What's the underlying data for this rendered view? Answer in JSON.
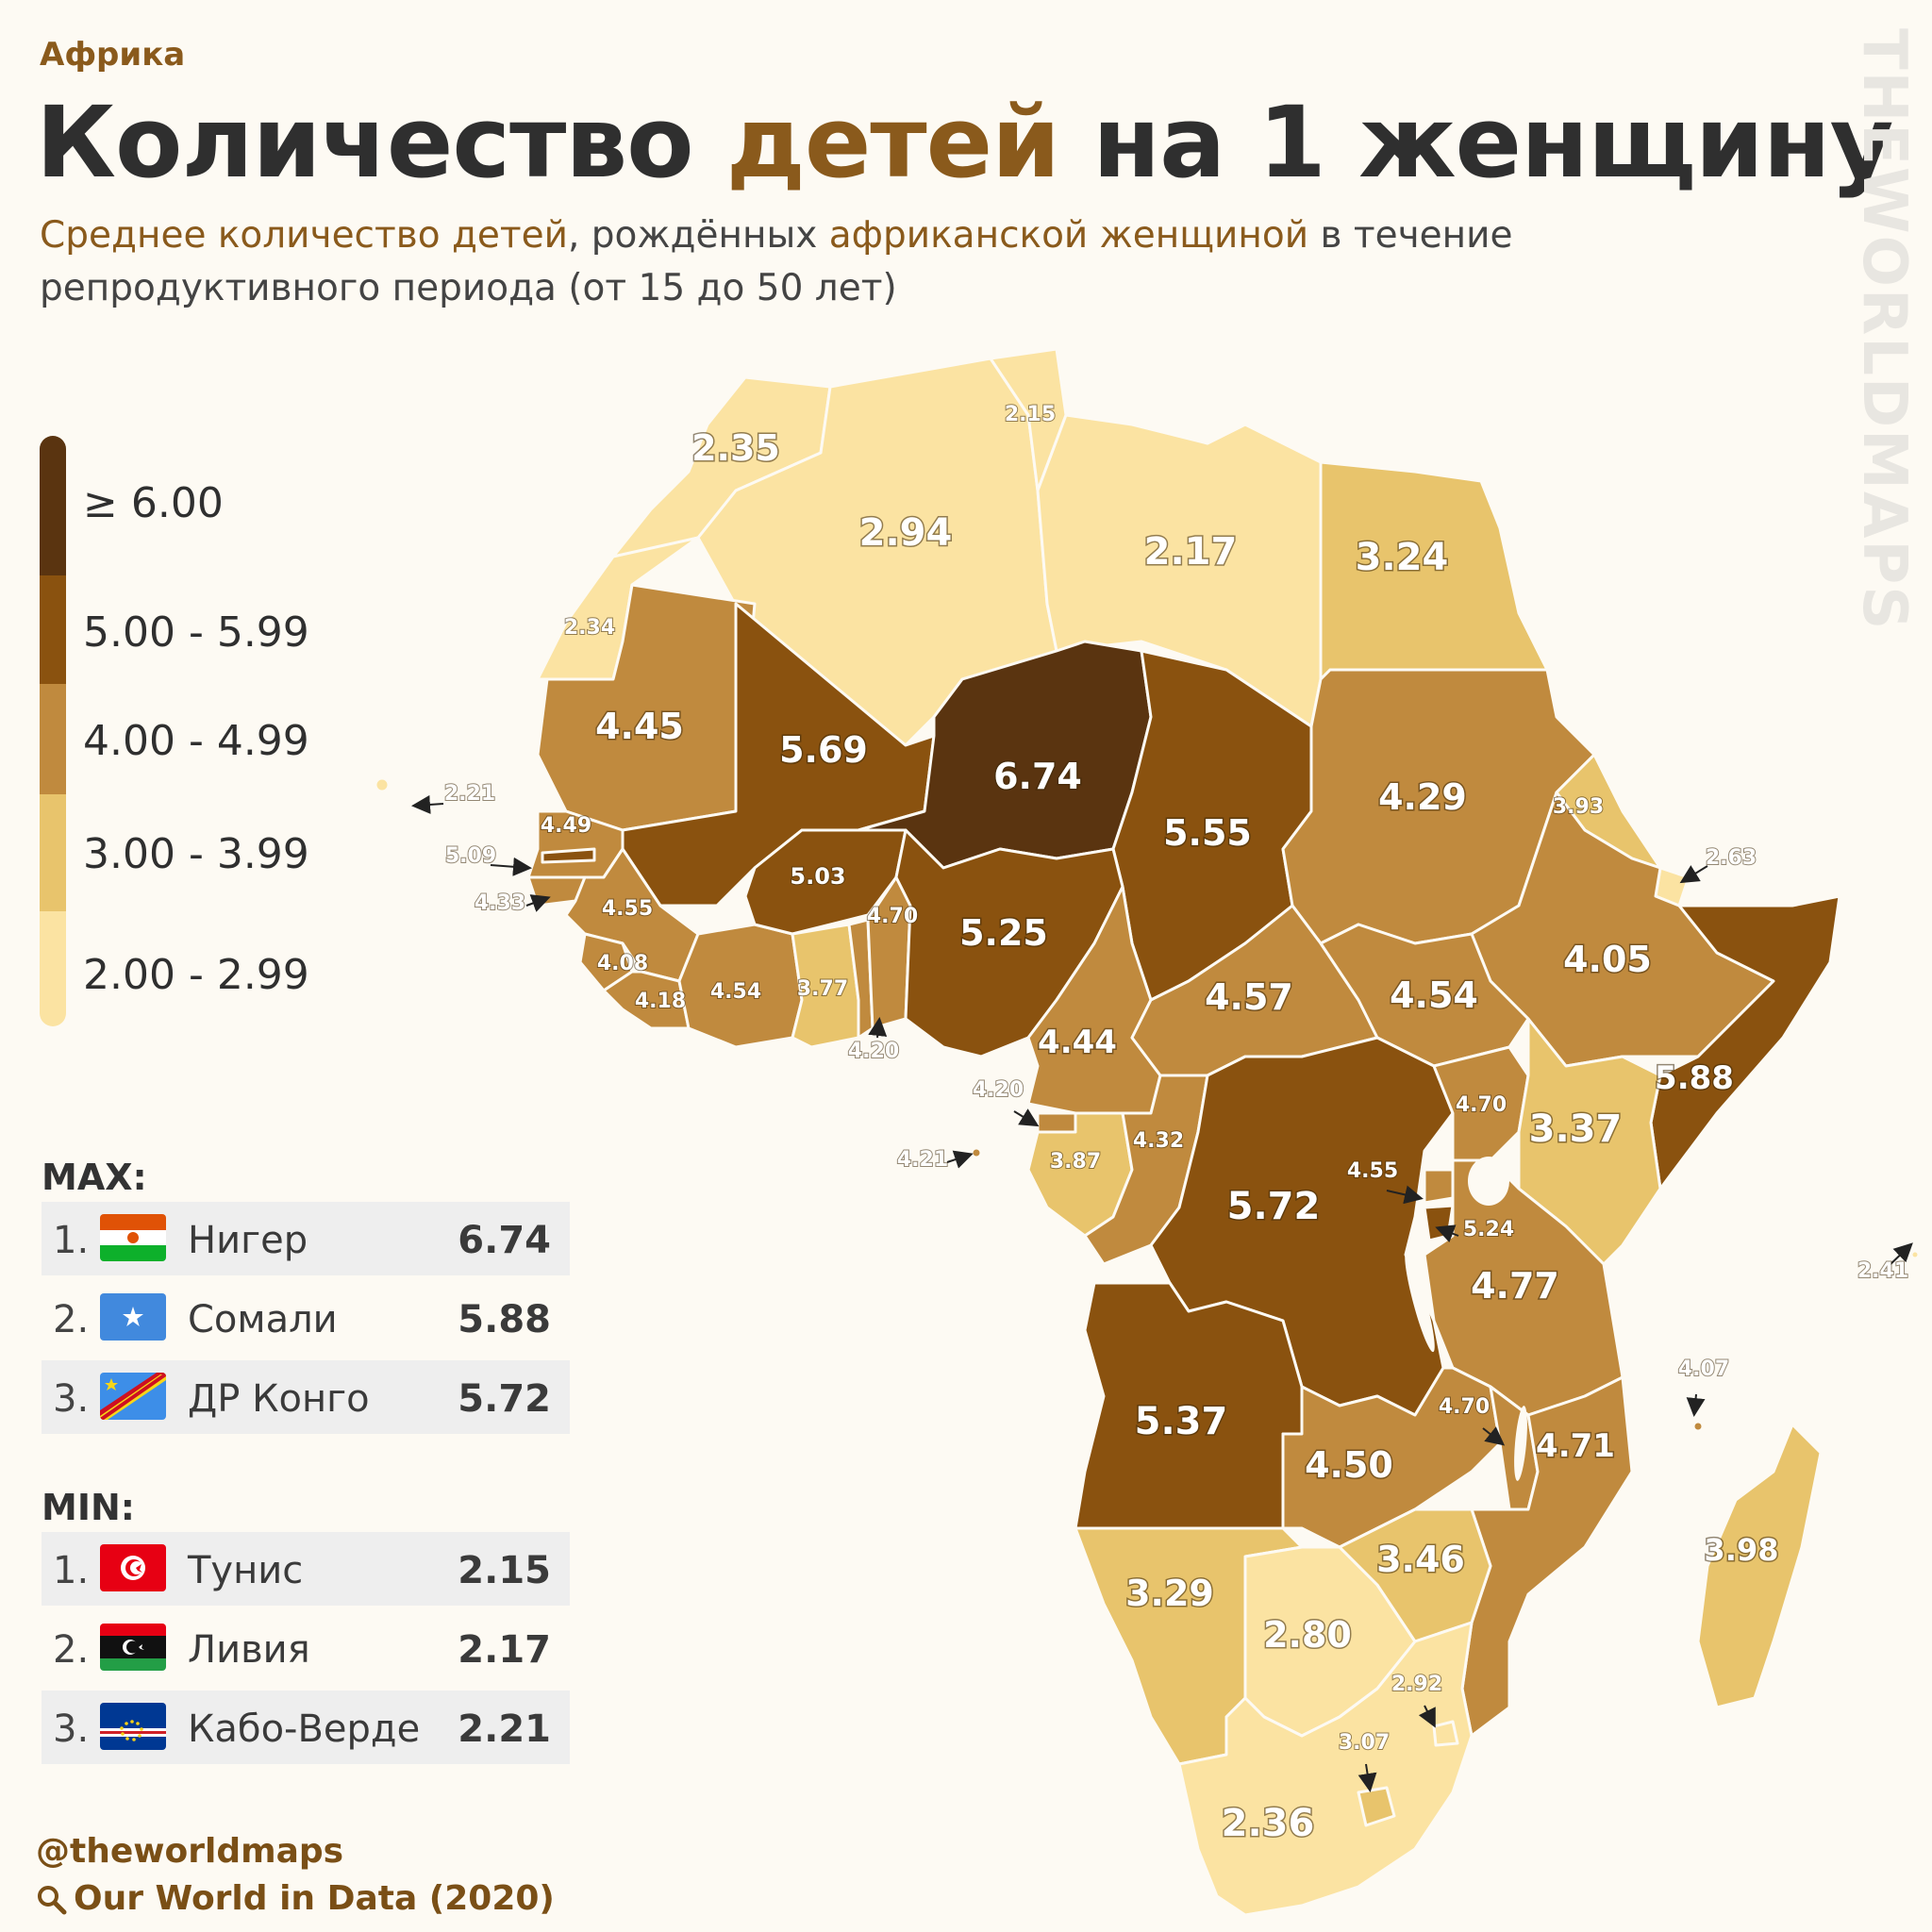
{
  "header": {
    "region": "Африка",
    "title_part1": "Количество ",
    "title_accent": "детей",
    "title_part2": " на 1 женщину",
    "subtitle_accent1": "Среднее количество детей",
    "subtitle_mid1": ", рождённых ",
    "subtitle_accent2": "африканской женщиной",
    "subtitle_mid2": " в течение репродуктивного периода (от 15 до 50 лет)"
  },
  "watermark": "THEWORLDMAPS",
  "legend": [
    {
      "label": "≥ 6.00",
      "color": "#5a3410"
    },
    {
      "label": "5.00 - 5.99",
      "color": "#8a520f"
    },
    {
      "label": "4.00 - 4.99",
      "color": "#c08a3e"
    },
    {
      "label": "3.00 - 3.99",
      "color": "#e8c46c"
    },
    {
      "label": "2.00 - 2.99",
      "color": "#fbe3a2"
    }
  ],
  "max": {
    "title": "MAX:",
    "rows": [
      {
        "rank": "1.",
        "country": "Нигер",
        "value": "6.74",
        "flag": "niger-flag"
      },
      {
        "rank": "2.",
        "country": "Сомали",
        "value": "5.88",
        "flag": "somalia-flag"
      },
      {
        "rank": "3.",
        "country": "ДР Конго",
        "value": "5.72",
        "flag": "dr-congo-flag"
      }
    ]
  },
  "min": {
    "title": "MIN:",
    "rows": [
      {
        "rank": "1.",
        "country": "Тунис",
        "value": "2.15",
        "flag": "tunisia-flag"
      },
      {
        "rank": "2.",
        "country": "Ливия",
        "value": "2.17",
        "flag": "libya-flag"
      },
      {
        "rank": "3.",
        "country": "Кабо-Верде",
        "value": "2.21",
        "flag": "cape-verde-flag"
      }
    ]
  },
  "map_values": [
    {
      "country": "Morocco",
      "value": "2.35"
    },
    {
      "country": "Algeria",
      "value": "2.94"
    },
    {
      "country": "Tunisia",
      "value": "2.15"
    },
    {
      "country": "Libya",
      "value": "2.17"
    },
    {
      "country": "Egypt",
      "value": "3.24"
    },
    {
      "country": "Western Sahara",
      "value": "2.34"
    },
    {
      "country": "Mauritania",
      "value": "4.45"
    },
    {
      "country": "Mali",
      "value": "5.69"
    },
    {
      "country": "Niger",
      "value": "6.74"
    },
    {
      "country": "Chad",
      "value": "5.55"
    },
    {
      "country": "Sudan",
      "value": "4.29"
    },
    {
      "country": "Eritrea",
      "value": "3.93"
    },
    {
      "country": "Djibouti",
      "value": "2.63"
    },
    {
      "country": "Cape Verde",
      "value": "2.21"
    },
    {
      "country": "Senegal",
      "value": "4.49"
    },
    {
      "country": "Gambia",
      "value": "5.09"
    },
    {
      "country": "Guinea-Bissau",
      "value": "4.33"
    },
    {
      "country": "Guinea",
      "value": "4.55"
    },
    {
      "country": "Burkina Faso",
      "value": "5.03"
    },
    {
      "country": "Togo",
      "value": "4.70"
    },
    {
      "country": "Nigeria",
      "value": "5.25"
    },
    {
      "country": "Ethiopia",
      "value": "4.05"
    },
    {
      "country": "Sierra Leone",
      "value": "4.08"
    },
    {
      "country": "Liberia",
      "value": "4.18"
    },
    {
      "country": "Cote d'Ivoire",
      "value": "4.54"
    },
    {
      "country": "Ghana",
      "value": "3.77"
    },
    {
      "country": "Benin",
      "value": "4.20"
    },
    {
      "country": "Central African Republic",
      "value": "4.57"
    },
    {
      "country": "South Sudan",
      "value": "4.54"
    },
    {
      "country": "Cameroon",
      "value": "4.44"
    },
    {
      "country": "Equatorial Guinea",
      "value": "4.20"
    },
    {
      "country": "Sao Tome and Principe",
      "value": "4.21"
    },
    {
      "country": "Gabon",
      "value": "3.87"
    },
    {
      "country": "Republic of Congo",
      "value": "4.32"
    },
    {
      "country": "DR Congo",
      "value": "5.72"
    },
    {
      "country": "Uganda",
      "value": "4.70"
    },
    {
      "country": "Kenya",
      "value": "3.37"
    },
    {
      "country": "Somalia",
      "value": "5.88"
    },
    {
      "country": "Rwanda",
      "value": "4.55"
    },
    {
      "country": "Burundi",
      "value": "5.24"
    },
    {
      "country": "Tanzania",
      "value": "4.77"
    },
    {
      "country": "Seychelles",
      "value": "2.41"
    },
    {
      "country": "Comoros",
      "value": "4.07"
    },
    {
      "country": "Angola",
      "value": "5.37"
    },
    {
      "country": "Zambia",
      "value": "4.50"
    },
    {
      "country": "Malawi",
      "value": "4.70"
    },
    {
      "country": "Mozambique",
      "value": "4.71"
    },
    {
      "country": "Madagascar",
      "value": "3.98"
    },
    {
      "country": "Zimbabwe",
      "value": "3.46"
    },
    {
      "country": "Namibia",
      "value": "3.29"
    },
    {
      "country": "Botswana",
      "value": "2.80"
    },
    {
      "country": "Eswatini",
      "value": "2.92"
    },
    {
      "country": "Lesotho",
      "value": "3.07"
    },
    {
      "country": "South Africa",
      "value": "2.36"
    }
  ],
  "footer": {
    "handle": "@theworldmaps",
    "source": "Our World in Data (2020)"
  }
}
